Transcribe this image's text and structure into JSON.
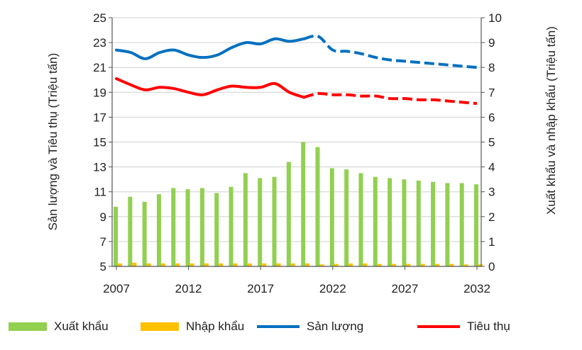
{
  "chart_data": {
    "type": "bar+line",
    "title": "",
    "ylabel_left": "Sản lượng và Tiêu thụ (Triệu tấn)",
    "ylabel_right": "Xuất khẩu và nhập khẩu (Triệu tấn)",
    "ylim_left": [
      5,
      25
    ],
    "yticks_left": [
      "5",
      "7",
      "9",
      "11",
      "13",
      "15",
      "17",
      "19",
      "21",
      "23",
      "25"
    ],
    "ylim_right": [
      0,
      10
    ],
    "yticks_right": [
      "0",
      "1",
      "2",
      "3",
      "4",
      "5",
      "6",
      "7",
      "8",
      "9",
      "10"
    ],
    "x_tick_labels": [
      "2007",
      "2012",
      "2017",
      "2022",
      "2027",
      "2032"
    ],
    "years": [
      2007,
      2008,
      2009,
      2010,
      2011,
      2012,
      2013,
      2014,
      2015,
      2016,
      2017,
      2018,
      2019,
      2020,
      2021,
      2022,
      2023,
      2024,
      2025,
      2026,
      2027,
      2028,
      2029,
      2030,
      2031,
      2032
    ],
    "forecast_start_year": 2020,
    "grid": "horizontal",
    "legend_position": "bottom",
    "series": [
      {
        "name": "Xuất khẩu",
        "kind": "bar",
        "axis": "right",
        "color": "#92d050",
        "values": [
          2.4,
          2.8,
          2.6,
          2.9,
          3.15,
          3.1,
          3.15,
          2.95,
          3.2,
          3.75,
          3.55,
          3.6,
          4.2,
          5.0,
          4.8,
          3.95,
          3.9,
          3.75,
          3.6,
          3.55,
          3.5,
          3.45,
          3.4,
          3.35,
          3.35,
          3.3
        ]
      },
      {
        "name": "Nhập khẩu",
        "kind": "bar",
        "axis": "right",
        "color": "#ffc000",
        "values": [
          0.12,
          0.15,
          0.12,
          0.12,
          0.12,
          0.12,
          0.12,
          0.12,
          0.12,
          0.12,
          0.12,
          0.12,
          0.12,
          0.12,
          0.08,
          0.1,
          0.12,
          0.12,
          0.1,
          0.1,
          0.1,
          0.1,
          0.1,
          0.1,
          0.08,
          0.08
        ]
      },
      {
        "name": "Sản lượng",
        "kind": "line",
        "axis": "left",
        "color": "#0070c0",
        "values": [
          22.4,
          22.2,
          21.7,
          22.2,
          22.4,
          22.0,
          21.8,
          22.0,
          22.6,
          23.0,
          22.9,
          23.3,
          23.1,
          23.3,
          23.5,
          22.4,
          22.3,
          22.1,
          21.8,
          21.6,
          21.5,
          21.4,
          21.3,
          21.2,
          21.1,
          21.0
        ]
      },
      {
        "name": "Tiêu thụ",
        "kind": "line",
        "axis": "left",
        "color": "#ff0000",
        "values": [
          20.1,
          19.6,
          19.2,
          19.4,
          19.3,
          19.0,
          18.8,
          19.2,
          19.5,
          19.4,
          19.4,
          19.7,
          19.0,
          18.6,
          18.9,
          18.8,
          18.8,
          18.7,
          18.7,
          18.5,
          18.5,
          18.4,
          18.4,
          18.3,
          18.2,
          18.1
        ]
      }
    ]
  }
}
